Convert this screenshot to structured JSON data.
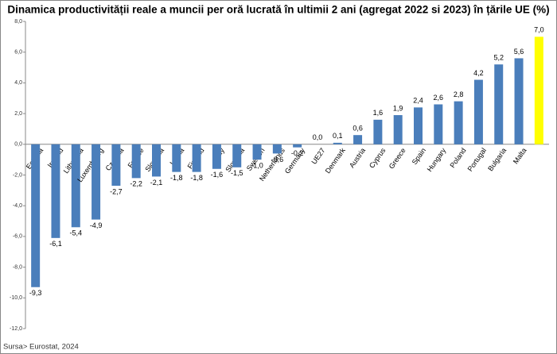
{
  "chart_data": {
    "type": "bar",
    "title": "Dinamica productivității reale a muncii per oră lucrată în ultimii 2 ani (agregat 2022 si 2023) în țările UE (%)",
    "source": "Sursa> Eurostat, 2024",
    "categories": [
      "Estonia",
      "Ireland",
      "Lithuania",
      "Luxembourg",
      "Czechia",
      "France",
      "Slovakia",
      "Latvia",
      "Finland",
      "Italy",
      "Slovenia",
      "Sweden",
      "Netherlands",
      "Germany",
      "UE27",
      "Denmark",
      "Austria",
      "Cyprus",
      "Greece",
      "Spain",
      "Hungary",
      "Poland",
      "Portugal",
      "Bulgaria",
      "Malta",
      null
    ],
    "values": [
      -9.3,
      -6.1,
      -5.4,
      -4.9,
      -2.7,
      -2.2,
      -2.1,
      -1.8,
      -1.8,
      -1.6,
      -1.5,
      -1.0,
      -0.6,
      -0.2,
      0.0,
      0.1,
      0.6,
      1.6,
      1.9,
      2.4,
      2.6,
      2.8,
      4.2,
      5.2,
      5.6,
      7.0
    ],
    "value_labels": [
      "-9,3",
      "-6,1",
      "-5,4",
      "-4,9",
      "-2,7",
      "-2,2",
      "-2,1",
      "-1,8",
      "-1,8",
      "-1,6",
      "-1,5",
      "-1,0",
      "-0,6",
      "-0,2",
      "0,0",
      "0,1",
      "0,6",
      "1,6",
      "1,9",
      "2,4",
      "2,6",
      "2,8",
      "4,2",
      "5,2",
      "5,6",
      "7,0"
    ],
    "colors": [
      "#4a7ebb",
      "#4a7ebb",
      "#4a7ebb",
      "#4a7ebb",
      "#4a7ebb",
      "#4a7ebb",
      "#4a7ebb",
      "#4a7ebb",
      "#4a7ebb",
      "#4a7ebb",
      "#4a7ebb",
      "#4a7ebb",
      "#4a7ebb",
      "#4a7ebb",
      "#4a7ebb",
      "#4a7ebb",
      "#4a7ebb",
      "#4a7ebb",
      "#4a7ebb",
      "#4a7ebb",
      "#4a7ebb",
      "#4a7ebb",
      "#4a7ebb",
      "#4a7ebb",
      "#4a7ebb",
      "#ffff00"
    ],
    "ylim": [
      -12,
      8
    ],
    "yticks": [
      {
        "value": -12,
        "label": "-12,0"
      },
      {
        "value": -10,
        "label": "-10,0"
      },
      {
        "value": -8,
        "label": "-8,0"
      },
      {
        "value": -6,
        "label": "-6,0"
      },
      {
        "value": -4,
        "label": "-4,0"
      },
      {
        "value": -2,
        "label": "-2,0"
      },
      {
        "value": 0,
        "label": "0,0"
      },
      {
        "value": 2,
        "label": "2,0"
      },
      {
        "value": 4,
        "label": "4,0"
      },
      {
        "value": 6,
        "label": "6,0"
      },
      {
        "value": 8,
        "label": "8,0"
      }
    ],
    "grid": false
  }
}
